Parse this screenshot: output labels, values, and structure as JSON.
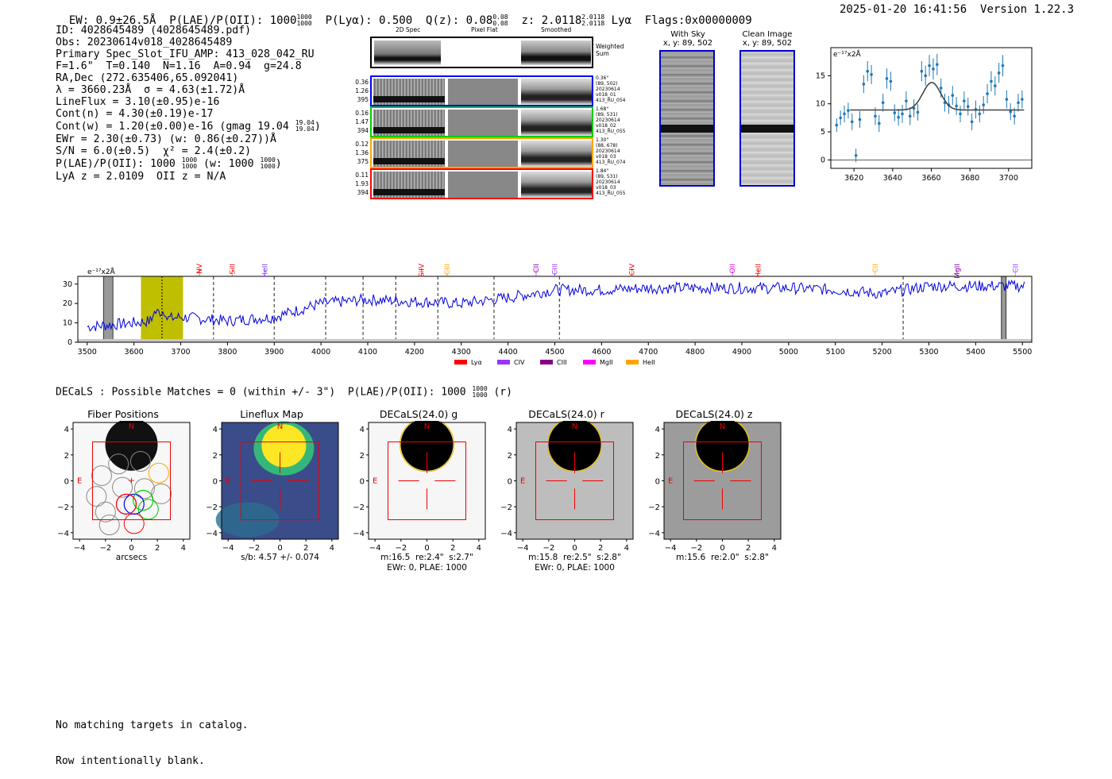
{
  "header": {
    "ew_text": "EW: 0.9±26.5Å",
    "plae_text": "P(LAE)/P(OII): 1000",
    "plae_sup": [
      "1000",
      "1000"
    ],
    "plya_text": "P(Lyα): 0.500",
    "qz_text": "Q(z): 0.08",
    "qz_sup": [
      "0.08",
      "0.08"
    ],
    "z_text": "z: 2.0118",
    "z_sup": [
      "2.0118",
      "2.0118"
    ],
    "z_line": "Lyα",
    "flags_text": "Flags:0x00000009",
    "timestamp": "2025-01-20 16:41:56",
    "version": "Version 1.22.3"
  },
  "info": {
    "id": "ID: 4028645489 (4028645489.pdf)",
    "obs": "Obs: 20230614v018_4028645489",
    "primary": "Primary Spec_Slot_IFU_AMP: 413_028_042_RU",
    "fwhm": "F=1.6\"  T=0.140  N=1.16  A=0.94  g=24.8",
    "radec": "RA,Dec (272.635406,65.092041)",
    "lambda": "λ = 3660.23Å  σ = 4.63(±1.72)Å",
    "lineflux": "LineFlux = 3.10(±0.95)e-16",
    "contn": "Cont(n) = 4.30(±0.19)e-17",
    "contw": "Cont(w) = 1.20(±0.00)e-16 (gmag 19.04",
    "contw_sup": [
      "19.04",
      "19.04"
    ],
    "contw_close": ")",
    "ewr": "EWr = 2.30(±0.73) (w: 0.86(±0.27))Å",
    "sn": "S/N = 6.0(±0.5)  χ² = 2.4(±0.2)",
    "plae": "P(LAE)/P(OII): 1000",
    "plae_sup": [
      "1000",
      "1000"
    ],
    "plae_w": "(w: 1000",
    "plae_w_sup": [
      "1000",
      "1000"
    ],
    "plae_close": ")",
    "lyaz": "LyA z = 2.0109  OII z = N/A"
  },
  "cutouts": {
    "col_headers": [
      "2D Spec",
      "Pixel Flat",
      "Smoothed"
    ],
    "weighted_label": "Weighted\nSum",
    "rows": [
      {
        "left": [
          "0.36",
          "1.26",
          "395"
        ],
        "right": "0.36\"\n(89, 502)\n20230614\nv018_01\n413_RU_054",
        "color": "#0000ff"
      },
      {
        "left": [
          "0.16",
          "1.47",
          "394"
        ],
        "right": "1.68\"\n(89, 531)\n20230614\nv018_02\n413_RU_055",
        "color": "#00cc00"
      },
      {
        "left": [
          "0.12",
          "1.36",
          "375"
        ],
        "right": "1.30\"\n(88, 678)\n20230614\nv018_03\n413_RU_074",
        "color": "#ffa500"
      },
      {
        "left": [
          "0.11",
          "1.93",
          "394"
        ],
        "right": "1.84\"\n(89, 531)\n20230614\nv018_03\n413_RU_055",
        "color": "#ff0000"
      }
    ],
    "with_sky": {
      "title": "With Sky",
      "coords": "x, y: 89, 502"
    },
    "clean": {
      "title": "Clean Image",
      "coords": "x, y: 89, 502"
    }
  },
  "zoom_chart": {
    "type": "scatter",
    "unit_label": "e⁻¹⁷x2Å",
    "xlim": [
      3608,
      3712
    ],
    "ylim": [
      -1.5,
      20
    ],
    "xticks": [
      3620,
      3640,
      3660,
      3680,
      3700
    ],
    "yticks": [
      0,
      5,
      10,
      15
    ],
    "points": [
      [
        3611,
        6.2,
        1.2
      ],
      [
        3613,
        7.5,
        1.3
      ],
      [
        3615,
        8.2,
        1.5
      ],
      [
        3617,
        8.8,
        1.4
      ],
      [
        3619,
        6.8,
        1.5
      ],
      [
        3621,
        0.8,
        1.2
      ],
      [
        3623,
        7.2,
        1.5
      ],
      [
        3625,
        13.5,
        1.6
      ],
      [
        3627,
        15.8,
        1.8
      ],
      [
        3629,
        15.2,
        1.7
      ],
      [
        3631,
        7.8,
        1.6
      ],
      [
        3633,
        6.5,
        1.5
      ],
      [
        3635,
        10.2,
        1.6
      ],
      [
        3637,
        14.5,
        1.8
      ],
      [
        3639,
        14.0,
        1.7
      ],
      [
        3641,
        8.4,
        1.5
      ],
      [
        3643,
        7.6,
        1.5
      ],
      [
        3645,
        8.2,
        1.6
      ],
      [
        3647,
        10.5,
        1.7
      ],
      [
        3649,
        7.8,
        1.6
      ],
      [
        3651,
        9.2,
        1.6
      ],
      [
        3653,
        8.5,
        1.5
      ],
      [
        3655,
        15.8,
        1.8
      ],
      [
        3657,
        15.0,
        1.8
      ],
      [
        3659,
        16.8,
        1.9
      ],
      [
        3661,
        16.2,
        1.9
      ],
      [
        3663,
        17.0,
        1.9
      ],
      [
        3665,
        12.8,
        1.7
      ],
      [
        3667,
        10.2,
        1.6
      ],
      [
        3669,
        9.8,
        1.6
      ],
      [
        3671,
        11.5,
        1.7
      ],
      [
        3673,
        9.6,
        1.6
      ],
      [
        3675,
        8.2,
        1.5
      ],
      [
        3677,
        10.5,
        1.7
      ],
      [
        3679,
        9.5,
        1.6
      ],
      [
        3681,
        6.8,
        1.5
      ],
      [
        3683,
        9.0,
        1.6
      ],
      [
        3685,
        8.2,
        1.5
      ],
      [
        3687,
        9.8,
        1.6
      ],
      [
        3689,
        11.8,
        1.7
      ],
      [
        3691,
        14.0,
        1.8
      ],
      [
        3693,
        13.2,
        1.7
      ],
      [
        3695,
        15.5,
        1.8
      ],
      [
        3697,
        16.8,
        1.9
      ],
      [
        3699,
        10.8,
        1.6
      ],
      [
        3701,
        8.6,
        1.5
      ],
      [
        3703,
        7.8,
        1.5
      ],
      [
        3705,
        10.2,
        1.6
      ],
      [
        3707,
        10.8,
        1.6
      ]
    ],
    "fit": {
      "baseline": 8.9,
      "peak": 4.9,
      "center": 3660.23,
      "sigma": 4.63
    }
  },
  "spectrum": {
    "type": "line",
    "unit_label": "e⁻¹⁷x2Å",
    "xlim": [
      3480,
      5520
    ],
    "ylim": [
      0,
      34
    ],
    "xticks": [
      3500,
      3600,
      3700,
      3800,
      3900,
      4000,
      4100,
      4200,
      4300,
      4400,
      4500,
      4600,
      4700,
      4800,
      4900,
      5000,
      5100,
      5200,
      5300,
      5400,
      5500
    ],
    "yticks": [
      0,
      10,
      20,
      30
    ],
    "highlight": [
      3615,
      3705
    ],
    "detection_x": 3660,
    "dashed": [
      3770,
      3900,
      4010,
      4090,
      4160,
      4250,
      4370,
      4510,
      5245
    ],
    "gaps": [
      [
        3535,
        3555
      ],
      [
        5455,
        5465
      ]
    ],
    "series": [
      {
        "x": 3500,
        "y": 8
      },
      {
        "x": 3600,
        "y": 10
      },
      {
        "x": 3700,
        "y": 13
      },
      {
        "x": 3800,
        "y": 11
      },
      {
        "x": 3900,
        "y": 13
      },
      {
        "x": 4000,
        "y": 20
      },
      {
        "x": 4100,
        "y": 22
      },
      {
        "x": 4200,
        "y": 21
      },
      {
        "x": 4300,
        "y": 20
      },
      {
        "x": 4400,
        "y": 23
      },
      {
        "x": 4500,
        "y": 27
      },
      {
        "x": 4600,
        "y": 27
      },
      {
        "x": 4700,
        "y": 28
      },
      {
        "x": 4800,
        "y": 28
      },
      {
        "x": 4900,
        "y": 28
      },
      {
        "x": 5000,
        "y": 28
      },
      {
        "x": 5100,
        "y": 27
      },
      {
        "x": 5200,
        "y": 25
      },
      {
        "x": 5300,
        "y": 29
      },
      {
        "x": 5400,
        "y": 29
      },
      {
        "x": 5500,
        "y": 29
      }
    ],
    "lines": [
      {
        "name": "NV",
        "x": 3740,
        "color": "#ff0000"
      },
      {
        "name": "SiII",
        "x": 3810,
        "color": "#ff0000"
      },
      {
        "name": "HeII",
        "x": 3880,
        "color": "#7b2ff7"
      },
      {
        "name": "SiIV",
        "x": 4215,
        "color": "#ff0000"
      },
      {
        "name": "CIII",
        "x": 4270,
        "color": "#ffa500"
      },
      {
        "name": "CII",
        "x": 4460,
        "color": "#8800aa"
      },
      {
        "name": "CIII",
        "x": 4500,
        "color": "#9933ff"
      },
      {
        "name": "CIV",
        "x": 4665,
        "color": "#ff0000"
      },
      {
        "name": "OII",
        "x": 4880,
        "color": "#ee00ee"
      },
      {
        "name": "HeII",
        "x": 4935,
        "color": "#ff0000"
      },
      {
        "name": "CII",
        "x": 5185,
        "color": "#ffa500"
      },
      {
        "name": "MgII",
        "x": 5360,
        "color": "#8800aa"
      },
      {
        "name": "CII",
        "x": 5485,
        "color": "#9933ff"
      }
    ],
    "legend": [
      {
        "label": "Lyα",
        "color": "#ff0000"
      },
      {
        "label": "CIV",
        "color": "#9933ff"
      },
      {
        "label": "CIII",
        "color": "#880088"
      },
      {
        "label": "MgII",
        "color": "#ff00ff"
      },
      {
        "label": "HeII",
        "color": "#ffa500"
      }
    ]
  },
  "decals_line": {
    "text": "DECaLS : Possible Matches = 0 (within +/- 3\")  P(LAE)/P(OII): 1000",
    "sup": [
      "1000",
      "1000"
    ],
    "tail": "(r)"
  },
  "panels": [
    {
      "title": "Fiber Positions",
      "captions": [
        "arcsecs"
      ]
    },
    {
      "title": "Lineflux Map",
      "captions": [
        "s/b: 4.57 +/- 0.074"
      ]
    },
    {
      "title": "DECaLS(24.0) g",
      "captions": [
        "m:16.5  re:2.4\"  s:2.7\"",
        "EWr: 0, PLAE: 1000"
      ]
    },
    {
      "title": "DECaLS(24.0) r",
      "captions": [
        "m:15.8  re:2.5\"  s:2.8\"",
        "EWr: 0, PLAE: 1000"
      ]
    },
    {
      "title": "DECaLS(24.0) z",
      "captions": [
        "m:15.6  re:2.0\"  s:2.8\""
      ]
    }
  ],
  "panel_axis": {
    "ticks": [
      "4",
      "2",
      "0",
      "−2",
      "−4"
    ],
    "xticks": [
      "−4",
      "−2",
      "0",
      "2",
      "4"
    ],
    "n_label": "N",
    "e_label": "E"
  },
  "catalog": {
    "line1": "No matching targets in catalog.",
    "line2": "Row intentionally blank."
  }
}
